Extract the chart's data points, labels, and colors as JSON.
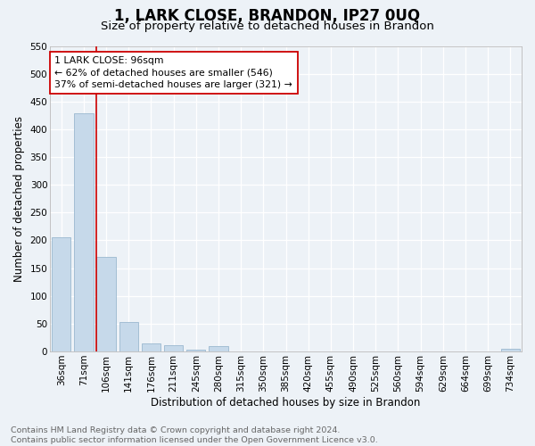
{
  "title": "1, LARK CLOSE, BRANDON, IP27 0UQ",
  "subtitle": "Size of property relative to detached houses in Brandon",
  "xlabel": "Distribution of detached houses by size in Brandon",
  "ylabel": "Number of detached properties",
  "categories": [
    "36sqm",
    "71sqm",
    "106sqm",
    "141sqm",
    "176sqm",
    "211sqm",
    "245sqm",
    "280sqm",
    "315sqm",
    "350sqm",
    "385sqm",
    "420sqm",
    "455sqm",
    "490sqm",
    "525sqm",
    "560sqm",
    "594sqm",
    "629sqm",
    "664sqm",
    "699sqm",
    "734sqm"
  ],
  "values": [
    205,
    428,
    170,
    53,
    14,
    11,
    4,
    9,
    0,
    0,
    0,
    0,
    0,
    0,
    0,
    0,
    0,
    0,
    0,
    0,
    5
  ],
  "bar_color": "#c6d9ea",
  "bar_edge_color": "#9ab8cf",
  "vline_x": 1.57,
  "vline_color": "#cc0000",
  "annotation_box_edge": "#cc0000",
  "marker_label": "1 LARK CLOSE: 96sqm",
  "annotation_line1": "← 62% of detached houses are smaller (546)",
  "annotation_line2": "37% of semi-detached houses are larger (321) →",
  "ylim": [
    0,
    550
  ],
  "yticks": [
    0,
    50,
    100,
    150,
    200,
    250,
    300,
    350,
    400,
    450,
    500,
    550
  ],
  "footer1": "Contains HM Land Registry data © Crown copyright and database right 2024.",
  "footer2": "Contains public sector information licensed under the Open Government Licence v3.0.",
  "bg_color": "#edf2f7",
  "grid_color": "#ffffff",
  "title_fontsize": 12,
  "subtitle_fontsize": 9.5,
  "ylabel_fontsize": 8.5,
  "xlabel_fontsize": 8.5,
  "tick_fontsize": 7.5,
  "annot_fontsize": 7.8,
  "footer_fontsize": 6.8
}
